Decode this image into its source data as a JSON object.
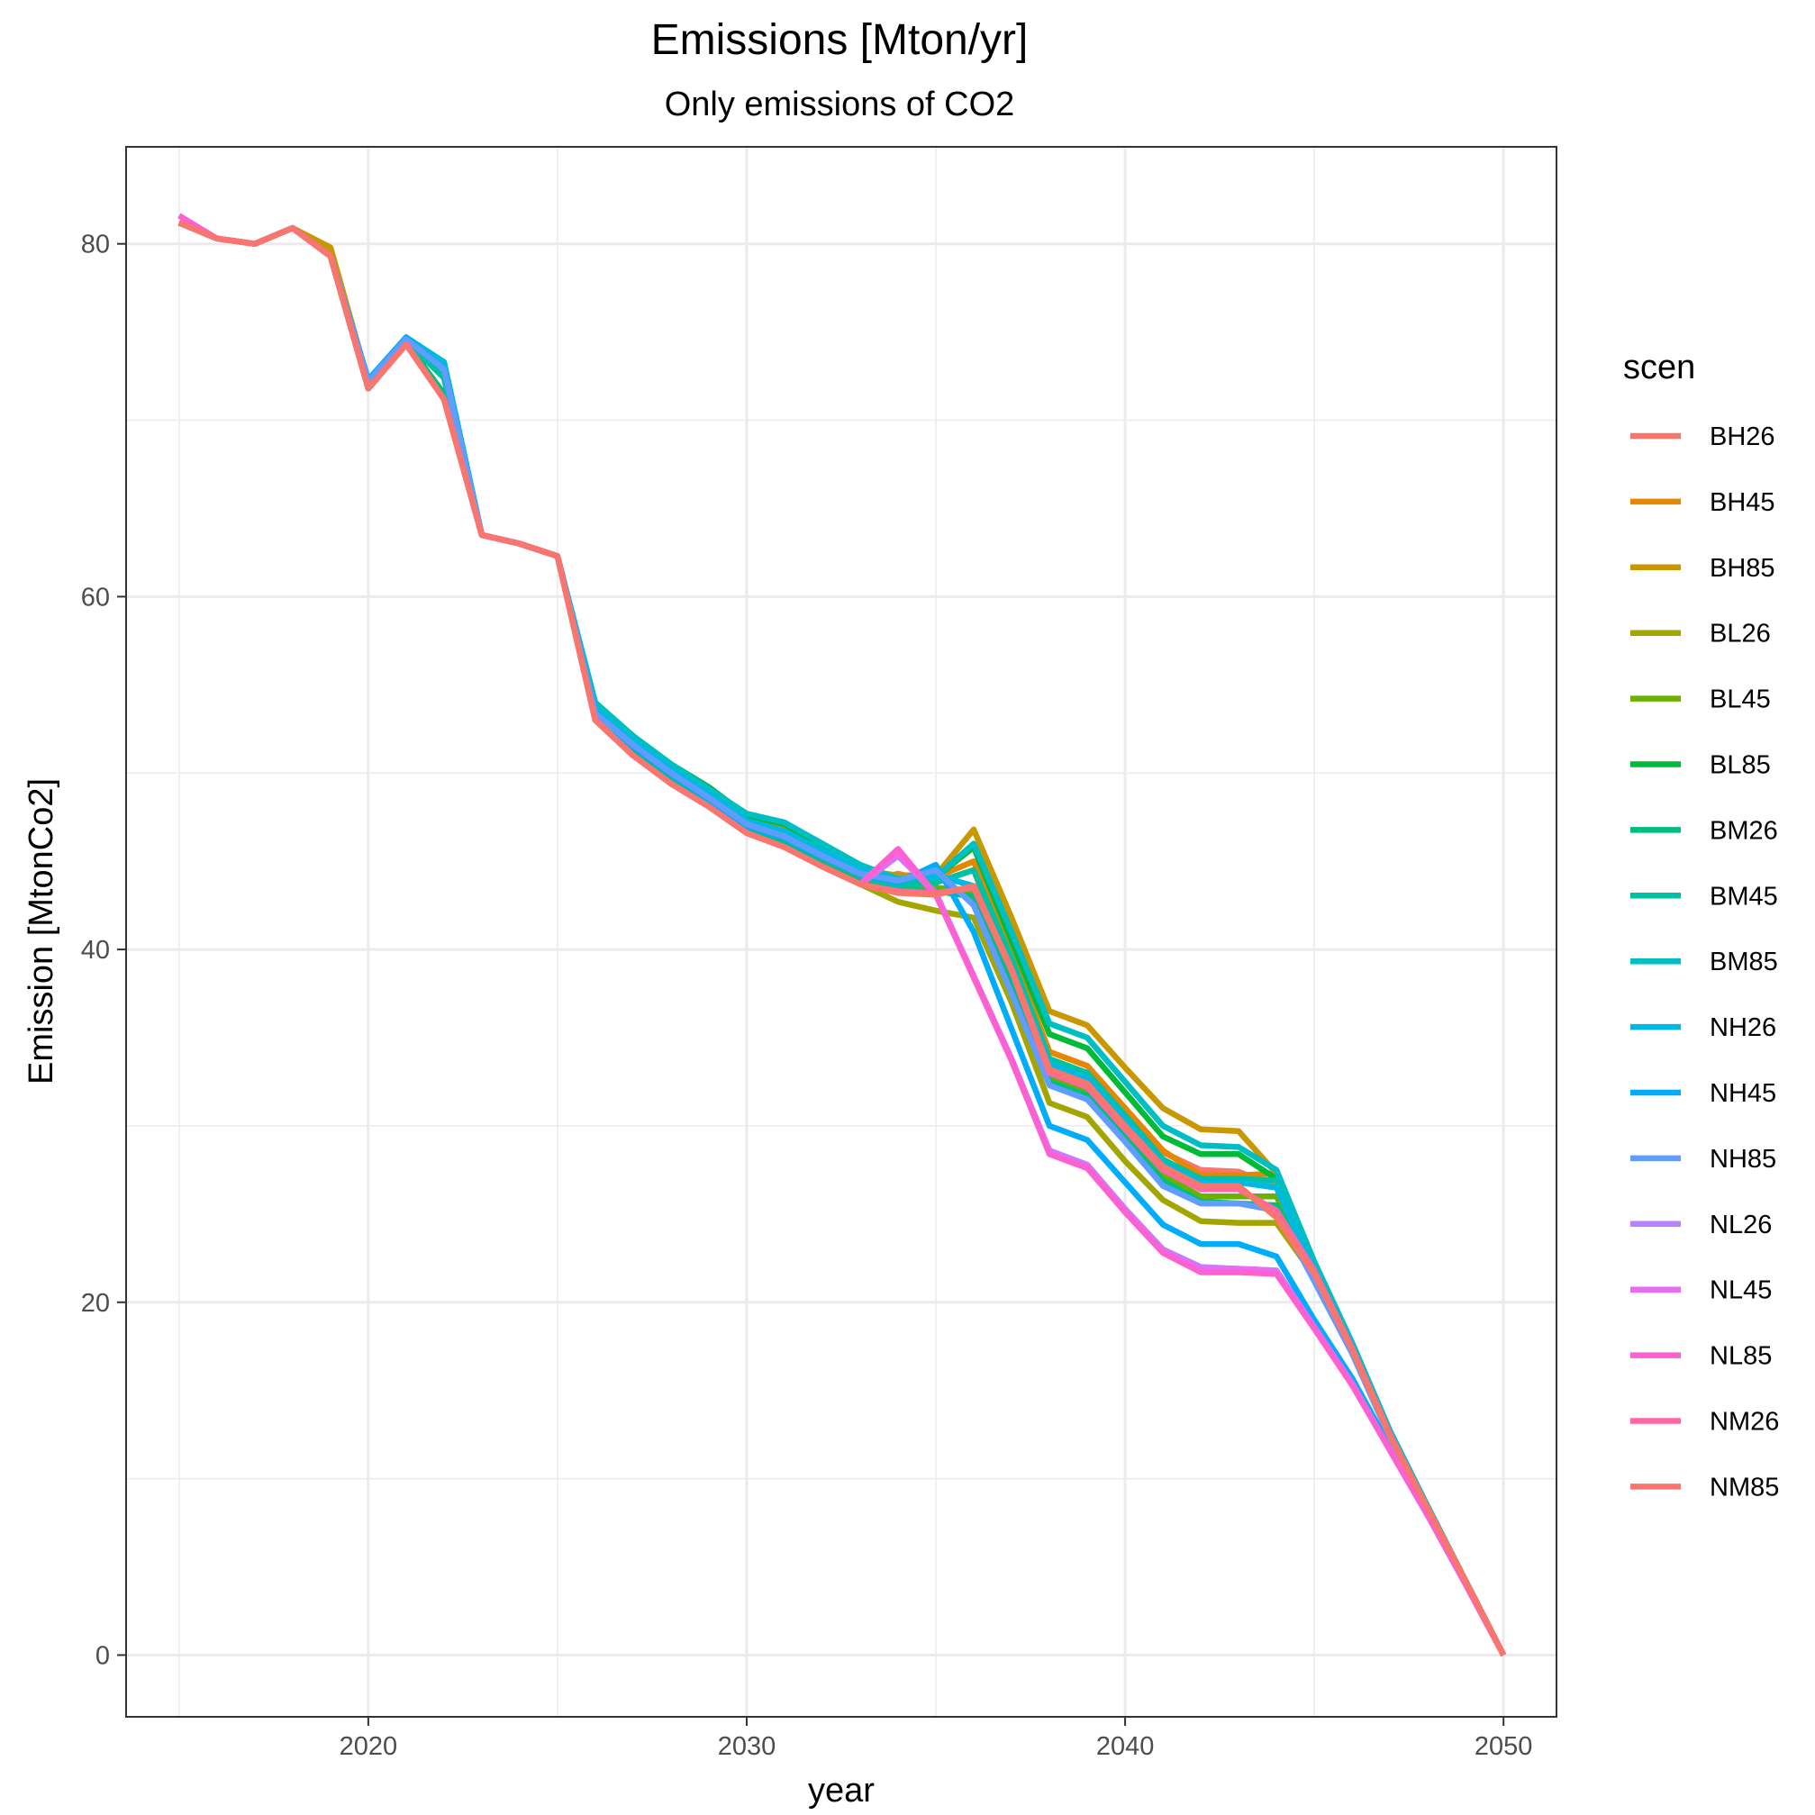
{
  "chart_data": {
    "type": "line",
    "title": "Emissions [Mton/yr]",
    "subtitle": "Only emissions of CO2",
    "xlabel": "year",
    "ylabel": "Emission [MtonCo2]",
    "xlim": [
      2013.6,
      2051.4
    ],
    "ylim": [
      -3.5,
      85.5
    ],
    "x_ticks": [
      2020,
      2030,
      2040,
      2050
    ],
    "y_ticks": [
      0,
      20,
      40,
      60,
      80
    ],
    "x_minor": [
      2015,
      2025,
      2035,
      2045
    ],
    "y_minor": [
      10,
      30,
      50,
      70
    ],
    "grid": true,
    "legend": {
      "title": "scen",
      "position": "right"
    },
    "x": [
      2015,
      2016,
      2017,
      2018,
      2019,
      2020,
      2021,
      2022,
      2023,
      2024,
      2025,
      2026,
      2027,
      2028,
      2029,
      2030,
      2031,
      2032,
      2033,
      2034,
      2035,
      2036,
      2037,
      2038,
      2039,
      2040,
      2041,
      2042,
      2043,
      2044,
      2045,
      2046,
      2047,
      2048,
      2049,
      2050
    ],
    "series": [
      {
        "name": "BH26",
        "color": "#F8766D",
        "values": [
          81.2,
          80.3,
          80.0,
          80.9,
          79.3,
          71.8,
          74.3,
          71.2,
          63.5,
          63.0,
          62.3,
          53.0,
          51.0,
          49.4,
          48.1,
          46.6,
          45.8,
          44.7,
          43.7,
          44.3,
          43.8,
          44.5,
          39.0,
          33.5,
          32.8,
          30.5,
          28.5,
          27.5,
          27.4,
          26.5,
          22.0,
          17.5,
          12.5,
          8.3,
          4.2,
          0.0
        ]
      },
      {
        "name": "BH45",
        "color": "#E58700",
        "values": [
          81.2,
          80.3,
          80.0,
          80.9,
          79.5,
          71.8,
          74.4,
          71.2,
          63.5,
          63.0,
          62.3,
          53.2,
          51.2,
          49.6,
          48.2,
          46.8,
          45.9,
          44.8,
          43.8,
          44.0,
          44.1,
          45.0,
          39.8,
          34.2,
          33.4,
          31.0,
          28.6,
          27.2,
          27.2,
          27.3,
          22.0,
          17.5,
          12.5,
          8.3,
          4.2,
          0.0
        ]
      },
      {
        "name": "BH85",
        "color": "#C99800",
        "values": [
          81.2,
          80.3,
          80.0,
          80.9,
          79.8,
          72.2,
          74.6,
          72.9,
          63.5,
          63.0,
          62.3,
          53.6,
          51.8,
          50.2,
          48.9,
          47.4,
          46.8,
          45.6,
          44.5,
          44.2,
          44.2,
          46.8,
          41.8,
          36.5,
          35.7,
          33.3,
          31.0,
          29.8,
          29.7,
          27.3,
          22.3,
          17.7,
          12.7,
          8.4,
          4.2,
          0.0
        ]
      },
      {
        "name": "BL26",
        "color": "#A3A500",
        "values": [
          81.2,
          80.3,
          80.0,
          80.9,
          79.3,
          71.8,
          74.3,
          71.2,
          63.5,
          63.0,
          62.3,
          53.0,
          51.0,
          49.4,
          48.1,
          46.6,
          45.8,
          44.7,
          43.7,
          42.7,
          42.2,
          41.8,
          37.0,
          31.3,
          30.5,
          28.0,
          25.8,
          24.6,
          24.5,
          24.5,
          21.5,
          17.3,
          12.4,
          8.3,
          4.2,
          0.0
        ]
      },
      {
        "name": "BL45",
        "color": "#6BB100",
        "values": [
          81.2,
          80.3,
          80.0,
          80.9,
          79.3,
          71.8,
          74.4,
          71.5,
          63.5,
          63.0,
          62.3,
          53.3,
          51.4,
          49.8,
          48.5,
          47.0,
          46.3,
          45.1,
          44.0,
          43.4,
          43.5,
          43.3,
          38.5,
          32.8,
          32.0,
          29.6,
          27.2,
          26.0,
          26.0,
          26.0,
          21.8,
          17.4,
          12.5,
          8.3,
          4.2,
          0.0
        ]
      },
      {
        "name": "BL85",
        "color": "#00BA38",
        "values": [
          81.2,
          80.3,
          80.0,
          80.9,
          79.3,
          71.8,
          74.6,
          73.3,
          63.5,
          63.0,
          62.3,
          53.8,
          52.1,
          50.5,
          49.2,
          47.6,
          47.1,
          45.9,
          44.8,
          43.9,
          44.1,
          45.8,
          40.5,
          35.2,
          34.4,
          31.9,
          29.4,
          28.4,
          28.4,
          27.0,
          22.2,
          17.6,
          12.6,
          8.4,
          4.2,
          0.0
        ]
      },
      {
        "name": "BM26",
        "color": "#00BF7D",
        "values": [
          81.2,
          80.3,
          80.0,
          80.9,
          79.3,
          71.8,
          74.4,
          71.5,
          63.5,
          63.0,
          62.3,
          53.2,
          51.2,
          49.6,
          48.2,
          46.8,
          46.0,
          44.8,
          43.8,
          43.3,
          43.3,
          43.0,
          38.3,
          32.5,
          31.7,
          29.3,
          26.9,
          25.7,
          25.6,
          25.5,
          21.7,
          17.4,
          12.5,
          8.3,
          4.2,
          0.0
        ]
      },
      {
        "name": "BM45",
        "color": "#00C1A3",
        "values": [
          81.2,
          80.3,
          80.0,
          80.9,
          79.3,
          71.8,
          74.5,
          72.4,
          63.5,
          63.0,
          62.3,
          53.5,
          51.6,
          50.0,
          48.7,
          47.2,
          46.5,
          45.3,
          44.2,
          43.6,
          43.8,
          44.5,
          39.5,
          33.8,
          33.0,
          30.6,
          28.1,
          27.0,
          27.0,
          26.9,
          22.0,
          17.5,
          12.5,
          8.3,
          4.2,
          0.0
        ]
      },
      {
        "name": "BM85",
        "color": "#00BFC4",
        "values": [
          81.2,
          80.3,
          80.0,
          80.9,
          79.3,
          72.3,
          74.7,
          73.3,
          63.5,
          63.0,
          62.3,
          54.0,
          52.1,
          50.5,
          49.1,
          47.7,
          47.2,
          46.0,
          44.8,
          44.0,
          44.1,
          46.0,
          41.0,
          35.8,
          35.0,
          32.5,
          30.0,
          28.9,
          28.8,
          27.5,
          22.3,
          17.7,
          12.7,
          8.4,
          4.2,
          0.0
        ]
      },
      {
        "name": "NH26",
        "color": "#00B9E3",
        "values": [
          81.2,
          80.3,
          80.0,
          80.9,
          79.3,
          72.2,
          74.7,
          73.2,
          63.5,
          63.0,
          62.3,
          53.6,
          51.8,
          50.2,
          48.8,
          47.3,
          46.7,
          45.6,
          44.5,
          43.9,
          44.2,
          43.6,
          38.8,
          33.5,
          32.7,
          30.3,
          27.8,
          26.8,
          26.8,
          26.5,
          21.8,
          17.4,
          12.5,
          8.3,
          4.2,
          0.0
        ]
      },
      {
        "name": "NH45",
        "color": "#00ADFA",
        "values": [
          81.2,
          80.3,
          80.0,
          80.9,
          79.3,
          72.3,
          74.7,
          72.9,
          63.5,
          63.0,
          62.3,
          53.3,
          51.5,
          49.9,
          48.5,
          47.0,
          46.3,
          45.2,
          44.2,
          43.8,
          44.8,
          41.0,
          35.5,
          30.0,
          29.2,
          26.8,
          24.4,
          23.3,
          23.3,
          22.6,
          19.0,
          15.7,
          11.8,
          8.0,
          4.1,
          0.0
        ]
      },
      {
        "name": "NH85",
        "color": "#619CFF",
        "values": [
          81.2,
          80.3,
          80.0,
          80.9,
          79.3,
          72.2,
          74.6,
          72.9,
          63.5,
          63.0,
          62.3,
          53.4,
          51.6,
          50.0,
          48.6,
          47.1,
          46.4,
          45.3,
          44.3,
          43.9,
          44.5,
          42.5,
          37.5,
          32.3,
          31.5,
          29.1,
          26.6,
          25.6,
          25.6,
          25.2,
          21.2,
          17.1,
          12.3,
          8.2,
          4.1,
          0.0
        ]
      },
      {
        "name": "NL26",
        "color": "#B983FF",
        "values": [
          81.2,
          80.3,
          80.0,
          80.9,
          79.3,
          71.8,
          74.3,
          71.2,
          63.5,
          63.0,
          62.3,
          53.0,
          51.0,
          49.4,
          48.1,
          46.6,
          45.8,
          44.7,
          43.7,
          45.3,
          43.2,
          38.5,
          33.8,
          28.6,
          27.8,
          25.3,
          23.0,
          22.0,
          21.9,
          21.8,
          18.6,
          15.4,
          11.6,
          7.9,
          4.0,
          0.0
        ]
      },
      {
        "name": "NL45",
        "color": "#E76BF3",
        "values": [
          81.2,
          80.3,
          80.0,
          80.9,
          79.3,
          71.8,
          74.3,
          71.2,
          63.5,
          63.0,
          62.3,
          53.0,
          51.0,
          49.4,
          48.1,
          46.6,
          45.8,
          44.7,
          43.7,
          45.4,
          43.1,
          38.5,
          33.8,
          28.5,
          27.7,
          25.2,
          22.9,
          21.9,
          21.9,
          21.8,
          18.6,
          15.4,
          11.6,
          7.9,
          4.0,
          0.0
        ]
      },
      {
        "name": "NL85",
        "color": "#FD61D1",
        "values": [
          81.6,
          80.3,
          80.0,
          80.9,
          79.3,
          71.8,
          74.3,
          71.2,
          63.5,
          63.0,
          62.3,
          53.0,
          51.0,
          49.4,
          48.1,
          46.6,
          45.8,
          44.7,
          43.7,
          45.7,
          43.1,
          38.4,
          33.7,
          28.4,
          27.6,
          25.1,
          22.8,
          21.7,
          21.7,
          21.6,
          18.5,
          15.3,
          11.6,
          7.9,
          4.0,
          0.0
        ]
      },
      {
        "name": "NM26",
        "color": "#FF67A4",
        "values": [
          81.2,
          80.3,
          80.0,
          80.9,
          79.3,
          71.8,
          74.3,
          71.2,
          63.5,
          63.0,
          62.3,
          53.0,
          51.0,
          49.4,
          48.1,
          46.6,
          45.8,
          44.7,
          43.7,
          43.3,
          43.2,
          43.5,
          38.8,
          33.0,
          32.2,
          29.8,
          27.5,
          26.4,
          26.4,
          25.2,
          21.8,
          17.4,
          12.5,
          8.3,
          4.2,
          0.0
        ]
      },
      {
        "name": "NM85",
        "color": "#F8766D",
        "values": [
          81.2,
          80.3,
          80.0,
          80.9,
          79.3,
          71.8,
          74.3,
          71.2,
          63.5,
          63.0,
          62.3,
          53.0,
          51.0,
          49.4,
          48.1,
          46.6,
          45.8,
          44.7,
          43.7,
          43.2,
          43.1,
          43.6,
          38.9,
          33.2,
          32.4,
          30.0,
          27.7,
          26.6,
          26.6,
          24.8,
          21.6,
          17.3,
          12.4,
          8.3,
          4.2,
          0.0
        ]
      }
    ]
  }
}
